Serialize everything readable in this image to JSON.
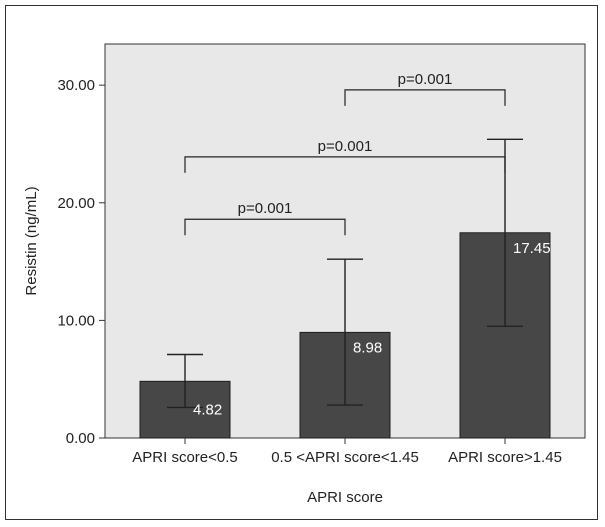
{
  "chart_data": {
    "type": "bar",
    "title": "",
    "xlabel": "APRI score",
    "ylabel": "Resistin (ng/mL)",
    "ylim": [
      0,
      33.5
    ],
    "yticks": [
      "0.00",
      "10.00",
      "20.00",
      "30.00"
    ],
    "categories": [
      "APRI score<0.5",
      "0.5 <APRI score<1.45",
      "APRI score>1.45"
    ],
    "values": [
      4.82,
      8.98,
      17.45
    ],
    "value_labels": [
      "4.82",
      "8.98",
      "17.45"
    ],
    "error_bars": [
      {
        "low": 2.6,
        "high": 7.1
      },
      {
        "low": 2.8,
        "high": 15.2
      },
      {
        "low": 9.5,
        "high": 25.4
      }
    ],
    "significance": [
      {
        "from": 0,
        "to": 1,
        "label": "p=0.001",
        "y": 18.6
      },
      {
        "from": 0,
        "to": 2,
        "label": "p=0.001",
        "y": 23.9
      },
      {
        "from": 1,
        "to": 2,
        "label": "p=0.001",
        "y": 29.6
      }
    ],
    "grid": false,
    "colors": {
      "plot_background": "#e8e8e8",
      "bar": "#474747",
      "bar_edge": "#1e1e1e"
    }
  }
}
